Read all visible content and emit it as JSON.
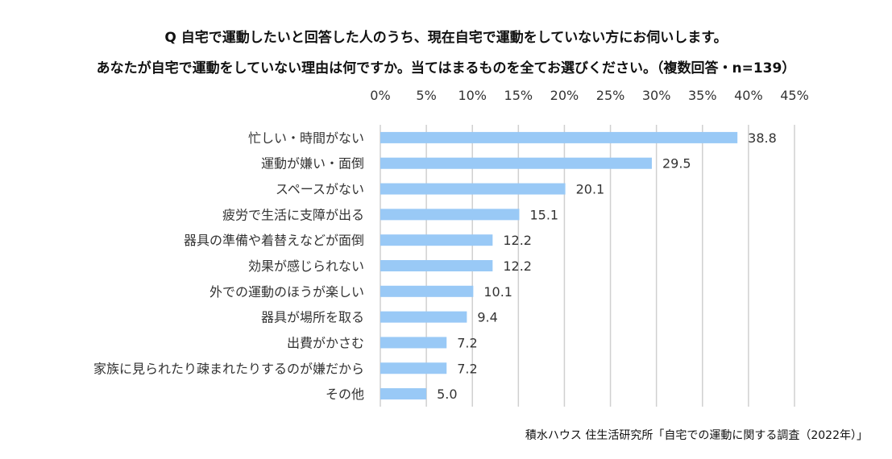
{
  "question": {
    "line1": "Q 自宅で運動したいと回答した人のうち、現在自宅で運動をしていない方にお伺いします。",
    "line2": "あなたが自宅で運動をしていない理由は何ですか。当てはまるものを全てお選びください。（複数回答・n=139）"
  },
  "source": "積水ハウス 住生活研究所「自宅での運動に関する調査（2022年）」",
  "colors": {
    "bar": "#99c9f6",
    "grid": "#d0d0d0",
    "text": "#333333"
  },
  "chart_data": {
    "type": "bar",
    "orientation": "horizontal",
    "categories": [
      "忙しい・時間がない",
      "運動が嫌い・面倒",
      "スペースがない",
      "疲労で生活に支障が出る",
      "器具の準備や着替えなどが面倒",
      "効果が感じられない",
      "外での運動のほうが楽しい",
      "器具が場所を取る",
      "出費がかさむ",
      "家族に見られたり疎まれたりするのが嫌だから",
      "その他"
    ],
    "values": [
      38.8,
      29.5,
      20.1,
      15.1,
      12.2,
      12.2,
      10.1,
      9.4,
      7.2,
      7.2,
      5.0
    ],
    "value_labels": [
      "38.8",
      "29.5",
      "20.1",
      "15.1",
      "12.2",
      "12.2",
      "10.1",
      "9.4",
      "7.2",
      "7.2",
      "5.0"
    ],
    "xlim": [
      0,
      45
    ],
    "ticks": [
      0,
      5,
      10,
      15,
      20,
      25,
      30,
      35,
      40,
      45
    ],
    "tick_labels": [
      "0%",
      "5%",
      "10%",
      "15%",
      "20%",
      "25%",
      "30%",
      "35%",
      "40%",
      "45%"
    ],
    "axis_position": "top",
    "grid": true
  }
}
